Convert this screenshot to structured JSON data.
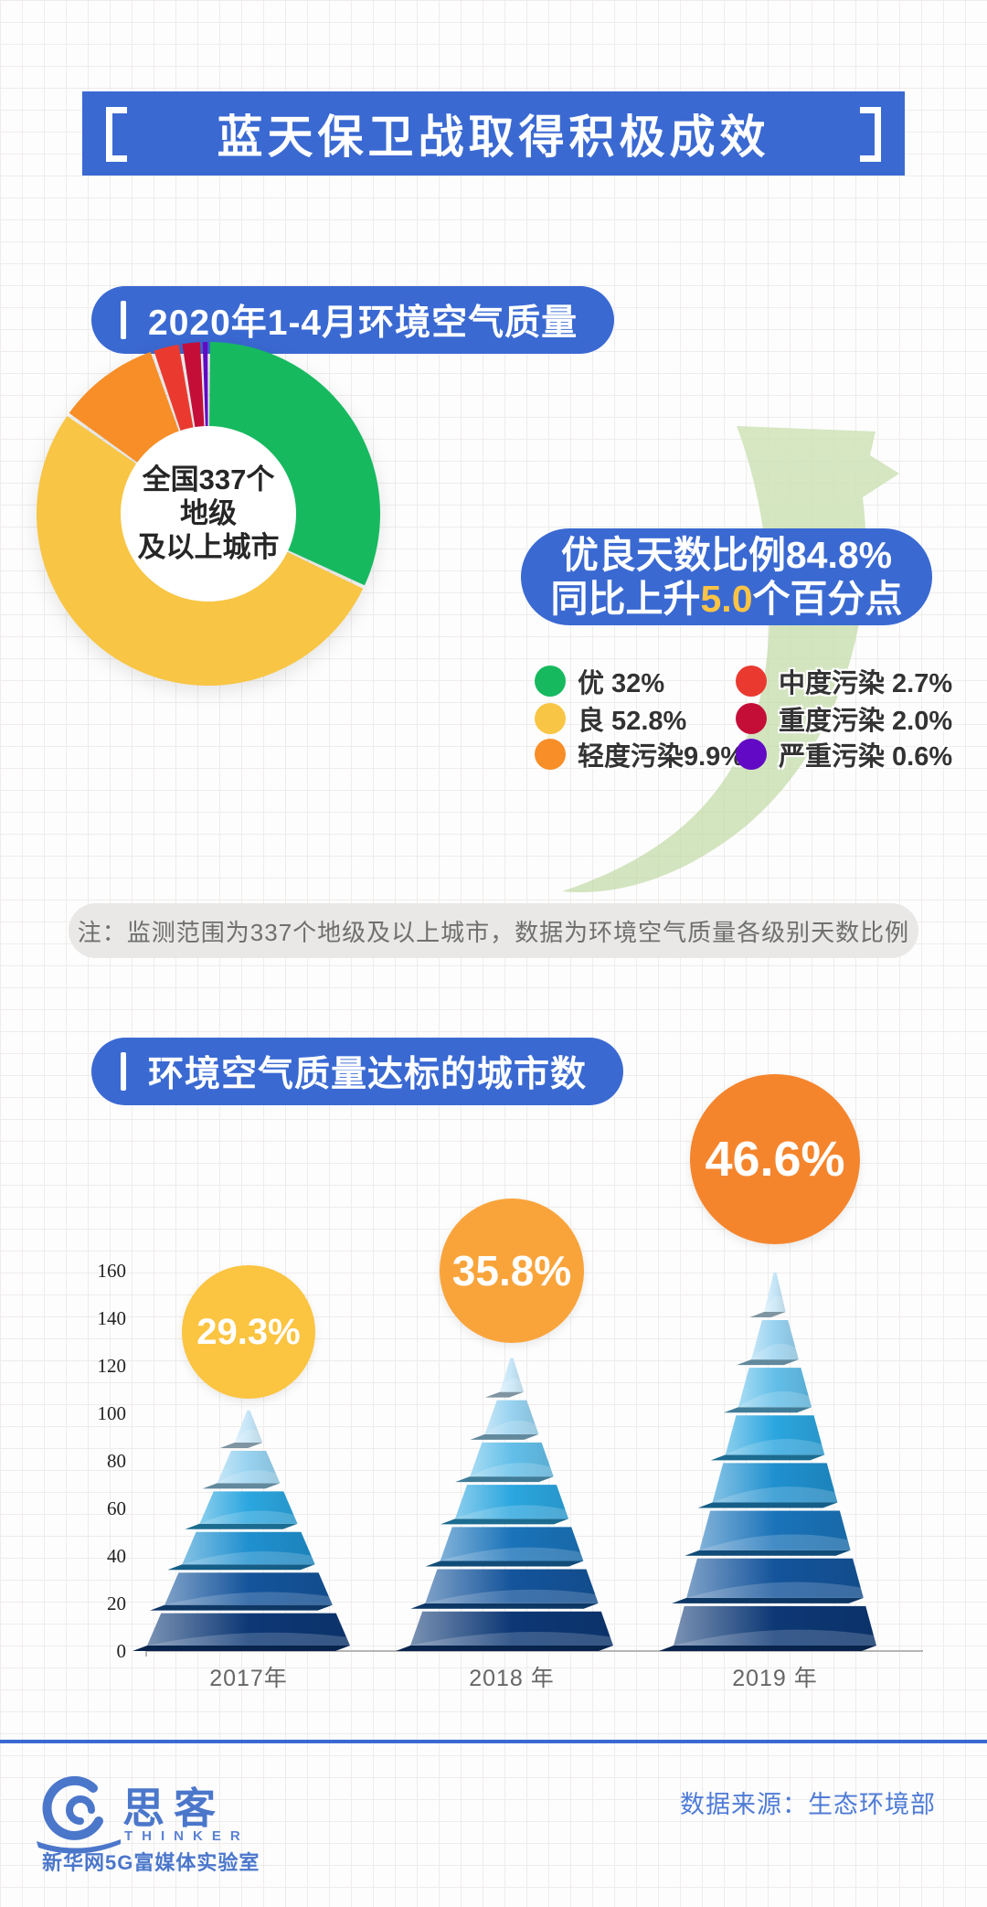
{
  "header": {
    "title": "蓝天保卫战取得积极成效"
  },
  "section1": {
    "heading": "2020年1-4月环境空气质量",
    "donut_center": {
      "line1": "全国337个",
      "line2": "地级",
      "line3": "及以上城市"
    },
    "callout": {
      "line1": "优良天数比例84.8%",
      "line2_pre": "同比上升",
      "line2_highlight": "5.0",
      "line2_post": "个百分点"
    },
    "legend": [
      {
        "text": "优 32%",
        "color": "#17B95F"
      },
      {
        "text": "良 52.8%",
        "color": "#F8C544"
      },
      {
        "text": "轻度污染9.9%",
        "color": "#F78E27"
      },
      {
        "text": "中度污染 2.7%",
        "color": "#EA3A30"
      },
      {
        "text": "重度污染 2.0%",
        "color": "#C40E38"
      },
      {
        "text": "严重污染 0.6%",
        "color": "#6209C5"
      }
    ],
    "note": "注：监测范围为337个地级及以上城市，数据为环境空气质量各级别天数比例"
  },
  "section2": {
    "heading": "环境空气质量达标的城市数"
  },
  "footer": {
    "brand_cn": "思客",
    "brand_en": "THINKER",
    "brand_sub": "新华网5G富媒体实验室",
    "source": "数据来源：生态环境部"
  },
  "chart_data": [
    {
      "type": "pie",
      "title": "2020年1-4月环境空气质量",
      "subtype": "donut",
      "center_label": "全国337个地级及以上城市",
      "series": [
        {
          "label": "优",
          "value": 32,
          "display": "优 32%",
          "color": "#17B95F"
        },
        {
          "label": "良",
          "value": 52.8,
          "display": "良 52.8%",
          "color": "#F8C544"
        },
        {
          "label": "轻度污染",
          "value": 9.9,
          "display": "轻度污染9.9%",
          "color": "#F78E27"
        },
        {
          "label": "中度污染",
          "value": 2.7,
          "display": "中度污染 2.7%",
          "color": "#EA3A30"
        },
        {
          "label": "重度污染",
          "value": 2.0,
          "display": "重度污染 2.0%",
          "color": "#C40E38"
        },
        {
          "label": "严重污染",
          "value": 0.6,
          "display": "严重污染 0.6%",
          "color": "#6209C5"
        }
      ],
      "annotation": "优良天数比例84.8%，同比上升5.0个百分点",
      "legend_position": "right"
    },
    {
      "type": "bar",
      "subtype": "pyramid",
      "title": "环境空气质量达标的城市数",
      "categories": [
        "2017年",
        "2018 年",
        "2019 年"
      ],
      "values": [
        99,
        121,
        157
      ],
      "percent_labels": [
        "29.3%",
        "35.8%",
        "46.6%"
      ],
      "circle_colors": [
        "#FBC441",
        "#F9A43B",
        "#F5852D"
      ],
      "segments": [
        6,
        7,
        8
      ],
      "ylim": [
        0,
        160
      ],
      "y_ticks": [
        160,
        140,
        120,
        100,
        80,
        60,
        40,
        20,
        0
      ],
      "grid": false,
      "xlabel": "",
      "ylabel": ""
    }
  ]
}
